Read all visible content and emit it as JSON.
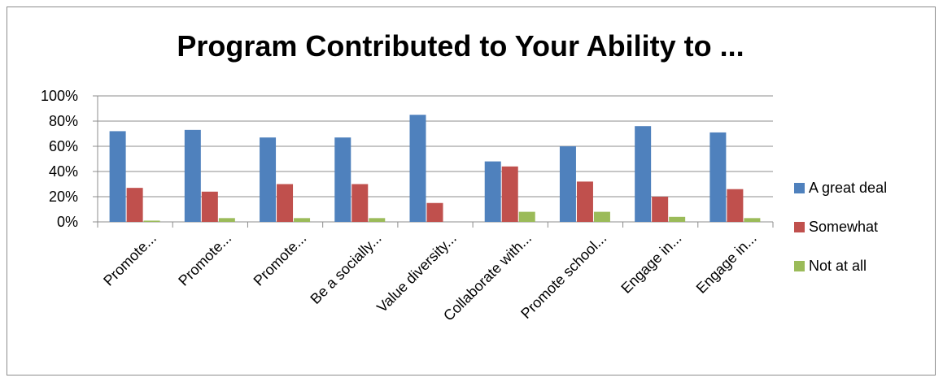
{
  "chart_data": {
    "type": "bar",
    "title": "Program Contributed to Your Ability to ...",
    "categories": [
      "Promote...",
      "Promote...",
      "Promote...",
      "Be a socially...",
      "Value diversity...",
      "Collaborate with...",
      "Promote school...",
      "Engage in...",
      "Engage in..."
    ],
    "y_ticks": [
      "0%",
      "20%",
      "40%",
      "60%",
      "80%",
      "100%"
    ],
    "ylim": [
      0,
      100
    ],
    "grid": true,
    "legend": "right",
    "series": [
      {
        "name": "A great deal",
        "color": "#4F81BD",
        "values": [
          72,
          73,
          67,
          67,
          85,
          48,
          60,
          76,
          71
        ]
      },
      {
        "name": "Somewhat",
        "color": "#C0504D",
        "values": [
          27,
          24,
          30,
          30,
          15,
          44,
          32,
          20,
          26
        ]
      },
      {
        "name": "Not at all",
        "color": "#9BBB59",
        "values": [
          1,
          3,
          3,
          3,
          0,
          8,
          8,
          4,
          3
        ]
      }
    ]
  }
}
